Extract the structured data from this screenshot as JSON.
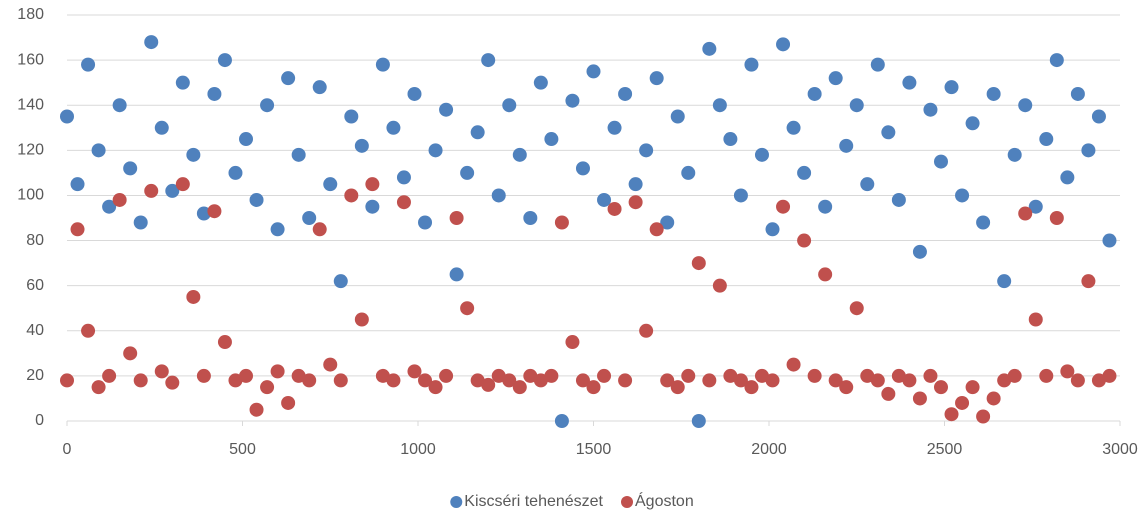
{
  "chart_data": {
    "type": "scatter",
    "x": [
      0,
      30,
      60,
      90,
      120,
      150,
      180,
      210,
      240,
      270,
      300,
      330,
      360,
      390,
      420,
      450,
      480,
      510,
      540,
      570,
      600,
      630,
      660,
      690,
      720,
      750,
      780,
      810,
      840,
      870,
      900,
      930,
      960,
      990,
      1020,
      1050,
      1080,
      1110,
      1140,
      1170,
      1200,
      1230,
      1260,
      1290,
      1320,
      1350,
      1380,
      1410,
      1440,
      1470,
      1500,
      1530,
      1560,
      1590,
      1620,
      1650,
      1680,
      1710,
      1740,
      1770,
      1800,
      1830,
      1860,
      1890,
      1920,
      1950,
      1980,
      2010,
      2040,
      2070,
      2100,
      2130,
      2160,
      2190,
      2220,
      2250,
      2280,
      2310,
      2340,
      2370,
      2400,
      2430,
      2460,
      2490,
      2520,
      2550,
      2580,
      2610,
      2640,
      2670,
      2700,
      2730,
      2760,
      2790,
      2820,
      2850,
      2880,
      2910,
      2940,
      2970
    ],
    "series": [
      {
        "name": "Kiscséri tehenészet",
        "color": "#4f81bd",
        "values": [
          135,
          105,
          158,
          120,
          95,
          140,
          112,
          88,
          168,
          130,
          102,
          150,
          118,
          92,
          145,
          160,
          110,
          125,
          98,
          140,
          85,
          152,
          118,
          90,
          148,
          105,
          62,
          135,
          122,
          95,
          158,
          130,
          108,
          145,
          88,
          120,
          138,
          65,
          110,
          128,
          160,
          100,
          140,
          118,
          90,
          150,
          125,
          0,
          142,
          112,
          155,
          98,
          130,
          145,
          105,
          120,
          152,
          88,
          135,
          110,
          0,
          165,
          140,
          125,
          100,
          158,
          118,
          85,
          167,
          130,
          110,
          145,
          95,
          152,
          122,
          140,
          105,
          158,
          128,
          98,
          150,
          75,
          138,
          115,
          148,
          100,
          132,
          88,
          145,
          62,
          118,
          140,
          95,
          125,
          160,
          108,
          145,
          120,
          135,
          80
        ]
      },
      {
        "name": "Ágoston",
        "color": "#c0504d",
        "values": [
          18,
          85,
          40,
          15,
          20,
          98,
          30,
          18,
          102,
          22,
          17,
          105,
          55,
          20,
          93,
          35,
          18,
          20,
          5,
          15,
          22,
          8,
          20,
          18,
          85,
          25,
          18,
          100,
          45,
          105,
          20,
          18,
          97,
          22,
          18,
          15,
          20,
          90,
          50,
          18,
          16,
          20,
          18,
          15,
          20,
          18,
          20,
          88,
          35,
          18,
          15,
          20,
          94,
          18,
          97,
          40,
          85,
          18,
          15,
          20,
          70,
          18,
          60,
          20,
          18,
          15,
          20,
          18,
          95,
          25,
          80,
          20,
          65,
          18,
          15,
          50,
          20,
          18,
          12,
          20,
          18,
          10,
          20,
          15,
          3,
          8,
          15,
          2,
          10,
          18,
          20,
          92,
          45,
          20,
          90,
          22,
          18,
          62,
          18,
          20
        ]
      }
    ],
    "xlim": [
      0,
      3000
    ],
    "xticks": [
      0,
      500,
      1000,
      1500,
      2000,
      2500,
      3000
    ],
    "ylim": [
      0,
      180
    ],
    "yticks": [
      0,
      20,
      40,
      60,
      80,
      100,
      120,
      140,
      160,
      180
    ],
    "grid": true,
    "legend": "bottom"
  }
}
